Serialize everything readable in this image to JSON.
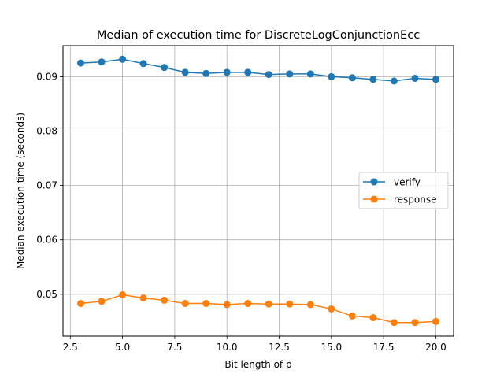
{
  "chart_data": {
    "type": "line",
    "title": "Median of execution time for DiscreteLogConjunctionEcc",
    "xlabel": "Bit length of p",
    "ylabel": "Median execution time (seconds)",
    "xlim": [
      2.15,
      20.85
    ],
    "ylim": [
      0.0423,
      0.0957
    ],
    "xticks": [
      2.5,
      5.0,
      7.5,
      10.0,
      12.5,
      15.0,
      17.5,
      20.0
    ],
    "xtick_labels": [
      "2.5",
      "5.0",
      "7.5",
      "10.0",
      "12.5",
      "15.0",
      "17.5",
      "20.0"
    ],
    "yticks": [
      0.05,
      0.06,
      0.07,
      0.08,
      0.09
    ],
    "ytick_labels": [
      "0.05",
      "0.06",
      "0.07",
      "0.08",
      "0.09"
    ],
    "grid": true,
    "legend_position": "center-right",
    "x": [
      3,
      4,
      5,
      6,
      7,
      8,
      9,
      10,
      11,
      12,
      13,
      14,
      15,
      16,
      17,
      18,
      19,
      20
    ],
    "series": [
      {
        "name": "verify",
        "color": "#1f77b4",
        "values": [
          0.0925,
          0.0927,
          0.0932,
          0.0924,
          0.0917,
          0.0908,
          0.0906,
          0.0908,
          0.0908,
          0.0904,
          0.0905,
          0.0905,
          0.09,
          0.0898,
          0.0895,
          0.0892,
          0.0897,
          0.0895
        ]
      },
      {
        "name": "response",
        "color": "#ff7f0e",
        "values": [
          0.0483,
          0.0487,
          0.0499,
          0.0493,
          0.0489,
          0.0483,
          0.0483,
          0.0481,
          0.0483,
          0.0482,
          0.0482,
          0.0481,
          0.0473,
          0.046,
          0.0457,
          0.0448,
          0.0448,
          0.045
        ]
      }
    ]
  }
}
